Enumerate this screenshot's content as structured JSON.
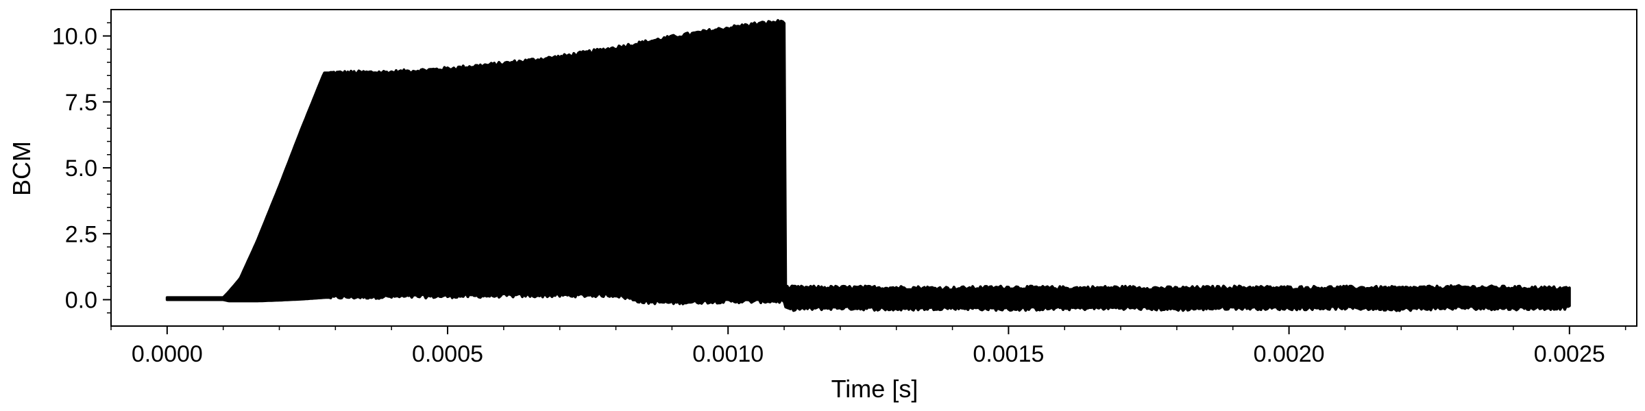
{
  "chart_data": {
    "type": "line",
    "title": "",
    "xlabel": "Time [s]",
    "ylabel": "BCM",
    "xlim": [
      -0.0001,
      0.00262
    ],
    "ylim": [
      -1.0,
      11.0
    ],
    "x_ticks": [
      0.0,
      0.0005,
      0.001,
      0.0015,
      0.002,
      0.0025
    ],
    "x_tick_labels": [
      "0.0000",
      "0.0005",
      "0.0010",
      "0.0015",
      "0.0020",
      "0.0025"
    ],
    "y_ticks": [
      0.0,
      2.5,
      5.0,
      7.5,
      10.0
    ],
    "y_tick_labels": [
      "0.0",
      "2.5",
      "5.0",
      "7.5",
      "10.0"
    ],
    "grid": false,
    "legend": "none",
    "color": "#000000",
    "series": [
      {
        "kind": "envelope",
        "x": [
          0.0,
          0.0001,
          0.00011,
          0.00013,
          0.00016,
          0.0002,
          0.00024,
          0.00028,
          0.0003,
          0.0004,
          0.0005,
          0.0006,
          0.0007,
          0.0008,
          0.00085,
          0.0009,
          0.001,
          0.00105,
          0.0011,
          0.001101,
          0.0012,
          0.0013,
          0.0014,
          0.0015,
          0.0016,
          0.0017,
          0.0018,
          0.0019,
          0.002,
          0.0021,
          0.0022,
          0.0023,
          0.0024,
          0.0025
        ],
        "upper": [
          0.08,
          0.08,
          0.3,
          0.8,
          2.2,
          4.3,
          6.5,
          8.6,
          8.6,
          8.62,
          8.75,
          8.95,
          9.2,
          9.55,
          9.75,
          9.95,
          10.3,
          10.45,
          10.55,
          0.45,
          0.45,
          0.45,
          0.42,
          0.46,
          0.43,
          0.45,
          0.42,
          0.46,
          0.44,
          0.45,
          0.43,
          0.47,
          0.45,
          0.42
        ],
        "lower": [
          0.0,
          0.0,
          -0.05,
          -0.05,
          -0.05,
          -0.02,
          0.02,
          0.08,
          0.1,
          0.12,
          0.14,
          0.16,
          0.17,
          0.18,
          -0.08,
          -0.1,
          -0.05,
          -0.05,
          -0.05,
          -0.35,
          -0.3,
          -0.35,
          -0.3,
          -0.35,
          -0.32,
          -0.3,
          -0.35,
          -0.3,
          -0.32,
          -0.3,
          -0.35,
          -0.3,
          -0.32,
          -0.3
        ]
      }
    ]
  }
}
